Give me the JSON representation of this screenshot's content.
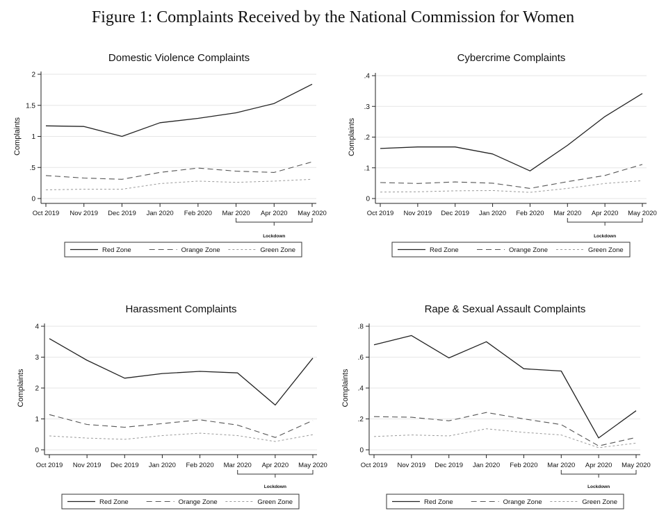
{
  "figure": {
    "title": "Figure 1: Complaints Received by the National Commission for Women"
  },
  "chart_data": [
    {
      "type": "line",
      "title": "Domestic Violence Complaints",
      "ylabel": "Complaints",
      "xlabel": "",
      "categories": [
        "Oct 2019",
        "Nov 2019",
        "Dec 2019",
        "Jan 2020",
        "Feb 2020",
        "Mar 2020",
        "Apr 2020",
        "May 2020"
      ],
      "ylim": [
        0,
        2
      ],
      "yticks": [
        0,
        0.5,
        1,
        1.5,
        2
      ],
      "ytick_labels": [
        "0",
        ".5",
        "1",
        "1.5",
        "2"
      ],
      "series": [
        {
          "name": "Red Zone",
          "values": [
            1.17,
            1.16,
            1.0,
            1.22,
            1.29,
            1.38,
            1.53,
            1.84
          ]
        },
        {
          "name": "Orange Zone",
          "values": [
            0.37,
            0.33,
            0.31,
            0.42,
            0.49,
            0.44,
            0.42,
            0.59
          ]
        },
        {
          "name": "Green Zone",
          "values": [
            0.14,
            0.15,
            0.15,
            0.24,
            0.28,
            0.26,
            0.28,
            0.31
          ]
        }
      ],
      "annotation": {
        "text": "Lockdown",
        "from": "Mar 2020",
        "to": "May 2020"
      },
      "legend": "bottom"
    },
    {
      "type": "line",
      "title": "Cybercrime Complaints",
      "ylabel": "Complaints",
      "xlabel": "",
      "categories": [
        "Oct 2019",
        "Nov 2019",
        "Dec 2019",
        "Jan 2020",
        "Feb 2020",
        "Mar 2020",
        "Apr 2020",
        "May 2020"
      ],
      "ylim": [
        0,
        0.4
      ],
      "yticks": [
        0,
        0.1,
        0.2,
        0.3,
        0.4
      ],
      "ytick_labels": [
        "0",
        ".1",
        ".2",
        ".3",
        ".4"
      ],
      "series": [
        {
          "name": "Red Zone",
          "values": [
            0.163,
            0.168,
            0.168,
            0.145,
            0.09,
            0.173,
            0.267,
            0.342
          ]
        },
        {
          "name": "Orange Zone",
          "values": [
            0.052,
            0.049,
            0.054,
            0.05,
            0.033,
            0.055,
            0.075,
            0.111
          ]
        },
        {
          "name": "Green Zone",
          "values": [
            0.021,
            0.022,
            0.025,
            0.026,
            0.02,
            0.033,
            0.049,
            0.058
          ]
        }
      ],
      "annotation": {
        "text": "Lockdown",
        "from": "Mar 2020",
        "to": "May 2020"
      },
      "legend": "bottom"
    },
    {
      "type": "line",
      "title": "Harassment Complaints",
      "ylabel": "Complaints",
      "xlabel": "",
      "categories": [
        "Oct 2019",
        "Nov 2019",
        "Dec 2019",
        "Jan 2020",
        "Feb 2020",
        "Mar 2020",
        "Apr 2020",
        "May 2020"
      ],
      "ylim": [
        0,
        4
      ],
      "yticks": [
        0,
        1,
        2,
        3,
        4
      ],
      "ytick_labels": [
        "0",
        "1",
        "2",
        "3",
        "4"
      ],
      "series": [
        {
          "name": "Red Zone",
          "values": [
            3.6,
            2.9,
            2.32,
            2.47,
            2.54,
            2.49,
            1.45,
            2.97
          ]
        },
        {
          "name": "Orange Zone",
          "values": [
            1.14,
            0.82,
            0.73,
            0.85,
            0.97,
            0.8,
            0.4,
            0.95
          ]
        },
        {
          "name": "Green Zone",
          "values": [
            0.45,
            0.38,
            0.34,
            0.46,
            0.54,
            0.46,
            0.27,
            0.49
          ]
        }
      ],
      "annotation": {
        "text": "Lockdown",
        "from": "Mar 2020",
        "to": "May 2020"
      },
      "legend": "bottom"
    },
    {
      "type": "line",
      "title": "Rape & Sexual Assault Complaints",
      "ylabel": "Complaints",
      "xlabel": "",
      "categories": [
        "Oct 2019",
        "Nov 2019",
        "Dec 2019",
        "Jan 2020",
        "Feb 2020",
        "Mar 2020",
        "Apr 2020",
        "May 2020"
      ],
      "ylim": [
        0,
        0.8
      ],
      "yticks": [
        0,
        0.2,
        0.4,
        0.6,
        0.8
      ],
      "ytick_labels": [
        "0",
        ".2",
        ".4",
        ".6",
        ".8"
      ],
      "series": [
        {
          "name": "Red Zone",
          "values": [
            0.68,
            0.74,
            0.595,
            0.7,
            0.525,
            0.51,
            0.077,
            0.253
          ]
        },
        {
          "name": "Orange Zone",
          "values": [
            0.215,
            0.211,
            0.188,
            0.242,
            0.2,
            0.163,
            0.025,
            0.08
          ]
        },
        {
          "name": "Green Zone",
          "values": [
            0.086,
            0.096,
            0.09,
            0.136,
            0.113,
            0.096,
            0.014,
            0.043
          ]
        }
      ],
      "annotation": {
        "text": "Lockdown",
        "from": "Mar 2020",
        "to": "May 2020"
      },
      "legend": "bottom"
    }
  ]
}
